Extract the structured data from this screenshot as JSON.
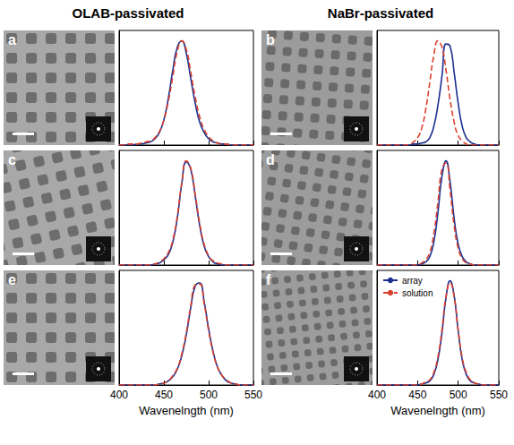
{
  "column_titles": [
    "OLAB-passivated",
    "NaBr-passivated"
  ],
  "chart_data": [
    {
      "type": "line",
      "title": "a",
      "xlim": [
        400,
        550
      ],
      "xticks": [
        400,
        450,
        500,
        550
      ],
      "ylim": [
        0,
        1.1
      ],
      "tick_labels": false,
      "x": [
        400,
        405,
        410,
        415,
        420,
        425,
        430,
        435,
        440,
        445,
        450,
        455,
        460,
        465,
        470,
        475,
        480,
        485,
        490,
        495,
        500,
        505,
        510,
        515,
        520,
        525,
        530,
        535,
        540,
        545,
        550
      ],
      "series": [
        {
          "name": "array",
          "color": "#1c2f8f",
          "line_style": "solid",
          "values": [
            0,
            0,
            0,
            0,
            0.01,
            0.01,
            0.02,
            0.03,
            0.06,
            0.12,
            0.24,
            0.45,
            0.72,
            0.94,
            1.0,
            0.88,
            0.64,
            0.4,
            0.22,
            0.12,
            0.06,
            0.03,
            0.02,
            0.01,
            0.01,
            0,
            0,
            0,
            0,
            0,
            0
          ]
        },
        {
          "name": "solution",
          "color": "#d9412e",
          "line_style": "dashed",
          "values": [
            0,
            0,
            0.01,
            0.01,
            0.01,
            0.02,
            0.03,
            0.04,
            0.07,
            0.13,
            0.24,
            0.42,
            0.66,
            0.9,
            1.0,
            0.92,
            0.7,
            0.46,
            0.27,
            0.15,
            0.08,
            0.04,
            0.02,
            0.01,
            0.01,
            0,
            0,
            0,
            0,
            0,
            0
          ]
        }
      ]
    },
    {
      "type": "line",
      "title": "b",
      "xlim": [
        400,
        550
      ],
      "xticks": [
        400,
        450,
        500,
        550
      ],
      "ylim": [
        0,
        1.1
      ],
      "tick_labels": false,
      "x": [
        400,
        405,
        410,
        415,
        420,
        425,
        430,
        435,
        440,
        445,
        450,
        455,
        460,
        465,
        470,
        475,
        480,
        485,
        490,
        495,
        500,
        505,
        510,
        515,
        520,
        525,
        530,
        535,
        540,
        545,
        550
      ],
      "series": [
        {
          "name": "array",
          "color": "#1c2f8f",
          "line_style": "solid",
          "values": [
            0,
            0,
            0,
            0,
            0,
            0,
            0,
            0,
            0,
            0.01,
            0.01,
            0.02,
            0.03,
            0.07,
            0.18,
            0.38,
            0.66,
            0.97,
            0.95,
            0.7,
            0.4,
            0.18,
            0.07,
            0.03,
            0.01,
            0,
            0,
            0,
            0,
            0,
            0
          ]
        },
        {
          "name": "solution",
          "color": "#d9412e",
          "line_style": "dashed",
          "values": [
            0,
            0,
            0,
            0,
            0,
            0,
            0,
            0,
            0.01,
            0.03,
            0.07,
            0.16,
            0.34,
            0.6,
            0.86,
            1.0,
            0.94,
            0.72,
            0.44,
            0.22,
            0.09,
            0.04,
            0.01,
            0,
            0,
            0,
            0,
            0,
            0,
            0,
            0
          ]
        }
      ]
    },
    {
      "type": "line",
      "title": "c",
      "xlim": [
        400,
        550
      ],
      "xticks": [
        400,
        450,
        500,
        550
      ],
      "ylim": [
        0,
        1.1
      ],
      "tick_labels": false,
      "x": [
        400,
        405,
        410,
        415,
        420,
        425,
        430,
        435,
        440,
        445,
        450,
        455,
        460,
        465,
        470,
        475,
        480,
        485,
        490,
        495,
        500,
        505,
        510,
        515,
        520,
        525,
        530,
        535,
        540,
        545,
        550
      ],
      "series": [
        {
          "name": "array",
          "color": "#1c2f8f",
          "line_style": "solid",
          "values": [
            0,
            0,
            0,
            0,
            0,
            0,
            0,
            0,
            0.01,
            0.02,
            0.05,
            0.1,
            0.22,
            0.45,
            0.78,
            0.99,
            0.92,
            0.66,
            0.38,
            0.18,
            0.08,
            0.03,
            0.01,
            0,
            0,
            0,
            0,
            0,
            0,
            0,
            0
          ]
        },
        {
          "name": "solution",
          "color": "#d9412e",
          "line_style": "dashed",
          "values": [
            0,
            0,
            0,
            0,
            0,
            0,
            0,
            0,
            0.01,
            0.03,
            0.06,
            0.12,
            0.24,
            0.47,
            0.79,
            1.0,
            0.93,
            0.68,
            0.4,
            0.2,
            0.09,
            0.04,
            0.02,
            0.01,
            0,
            0,
            0,
            0,
            0,
            0,
            0
          ]
        }
      ]
    },
    {
      "type": "line",
      "title": "d",
      "xlim": [
        400,
        550
      ],
      "xticks": [
        400,
        450,
        500,
        550
      ],
      "ylim": [
        0,
        1.1
      ],
      "tick_labels": false,
      "x": [
        400,
        405,
        410,
        415,
        420,
        425,
        430,
        435,
        440,
        445,
        450,
        455,
        460,
        465,
        470,
        475,
        480,
        485,
        490,
        495,
        500,
        505,
        510,
        515,
        520,
        525,
        530,
        535,
        540,
        545,
        550
      ],
      "series": [
        {
          "name": "array",
          "color": "#1c2f8f",
          "line_style": "solid",
          "values": [
            0,
            0,
            0,
            0,
            0,
            0,
            0,
            0,
            0,
            0,
            0,
            0.01,
            0.03,
            0.08,
            0.22,
            0.5,
            0.85,
            1.0,
            0.8,
            0.45,
            0.2,
            0.08,
            0.03,
            0.01,
            0,
            0,
            0,
            0,
            0,
            0,
            0
          ]
        },
        {
          "name": "solution",
          "color": "#d9412e",
          "line_style": "dashed",
          "values": [
            0,
            0,
            0,
            0,
            0,
            0,
            0,
            0,
            0,
            0,
            0,
            0.02,
            0.05,
            0.12,
            0.3,
            0.6,
            0.92,
            0.98,
            0.72,
            0.38,
            0.16,
            0.06,
            0.02,
            0.01,
            0,
            0,
            0,
            0,
            0,
            0,
            0
          ]
        }
      ]
    },
    {
      "type": "line",
      "title": "e",
      "xlabel": "Wavenelngth (nm)",
      "xlim": [
        400,
        550
      ],
      "xticks": [
        400,
        450,
        500,
        550
      ],
      "ylim": [
        0,
        1.1
      ],
      "tick_labels": "x",
      "x": [
        400,
        405,
        410,
        415,
        420,
        425,
        430,
        435,
        440,
        445,
        450,
        455,
        460,
        465,
        470,
        475,
        480,
        485,
        490,
        495,
        500,
        505,
        510,
        515,
        520,
        525,
        530,
        535,
        540,
        545,
        550
      ],
      "series": [
        {
          "name": "array",
          "color": "#1c2f8f",
          "line_style": "solid",
          "values": [
            0,
            0,
            0,
            0,
            0,
            0,
            0,
            0,
            0,
            0.01,
            0.02,
            0.04,
            0.08,
            0.15,
            0.28,
            0.48,
            0.74,
            0.95,
            0.98,
            0.8,
            0.54,
            0.32,
            0.17,
            0.09,
            0.04,
            0.02,
            0.01,
            0,
            0,
            0,
            0
          ]
        },
        {
          "name": "solution",
          "color": "#d9412e",
          "line_style": "dashed",
          "values": [
            0,
            0,
            0,
            0,
            0,
            0,
            0,
            0,
            0,
            0.01,
            0.02,
            0.04,
            0.09,
            0.16,
            0.3,
            0.5,
            0.76,
            0.96,
            0.97,
            0.78,
            0.52,
            0.31,
            0.17,
            0.09,
            0.05,
            0.02,
            0.01,
            0,
            0,
            0,
            0
          ]
        }
      ]
    },
    {
      "type": "line",
      "title": "f",
      "xlabel": "Wavenelngth (nm)",
      "xlim": [
        400,
        550
      ],
      "xticks": [
        400,
        450,
        500,
        550
      ],
      "ylim": [
        0,
        1.1
      ],
      "tick_labels": "x",
      "legend": "upper left",
      "x": [
        400,
        405,
        410,
        415,
        420,
        425,
        430,
        435,
        440,
        445,
        450,
        455,
        460,
        465,
        470,
        475,
        480,
        485,
        490,
        495,
        500,
        505,
        510,
        515,
        520,
        525,
        530,
        535,
        540,
        545,
        550
      ],
      "series": [
        {
          "name": "array",
          "color": "#1c2f8f",
          "line_style": "solid",
          "values": [
            0,
            0,
            0,
            0,
            0,
            0,
            0,
            0,
            0,
            0,
            0,
            0.01,
            0.02,
            0.04,
            0.1,
            0.24,
            0.5,
            0.84,
            1.0,
            0.86,
            0.52,
            0.24,
            0.1,
            0.04,
            0.02,
            0.01,
            0,
            0,
            0,
            0,
            0
          ]
        },
        {
          "name": "solution",
          "color": "#d9412e",
          "line_style": "dashed",
          "values": [
            0,
            0,
            0,
            0,
            0,
            0,
            0,
            0,
            0,
            0,
            0,
            0.01,
            0.03,
            0.05,
            0.12,
            0.27,
            0.53,
            0.85,
            0.98,
            0.85,
            0.53,
            0.26,
            0.12,
            0.05,
            0.02,
            0.01,
            0,
            0,
            0,
            0,
            0
          ]
        }
      ]
    }
  ]
}
